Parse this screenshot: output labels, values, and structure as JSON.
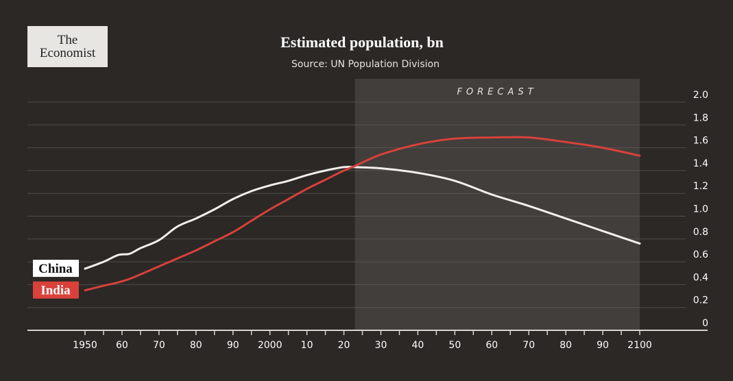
{
  "logo": {
    "line1": "The",
    "line2": "Economist"
  },
  "chart_data": {
    "type": "line",
    "title": "Estimated population, bn",
    "subtitle": "Source: UN Population Division",
    "annotation": "FORECAST",
    "forecast_start": 2023,
    "xlim": [
      1950,
      2100
    ],
    "ylim": [
      0,
      2.0
    ],
    "grid": true,
    "y_axis_side": "right",
    "x_ticks": [
      1950,
      1960,
      1970,
      1980,
      1990,
      2000,
      2010,
      2020,
      2030,
      2040,
      2050,
      2060,
      2070,
      2080,
      2090,
      2100
    ],
    "x_tick_labels": [
      "1950",
      "60",
      "70",
      "80",
      "90",
      "2000",
      "10",
      "20",
      "30",
      "40",
      "50",
      "60",
      "70",
      "80",
      "90",
      "2100"
    ],
    "y_ticks": [
      0,
      0.2,
      0.4,
      0.6,
      0.8,
      1.0,
      1.2,
      1.4,
      1.6,
      1.8,
      2.0
    ],
    "y_tick_labels": [
      "0",
      "0.2",
      "0.4",
      "0.6",
      "0.8",
      "1.0",
      "1.2",
      "1.4",
      "1.6",
      "1.8",
      "2.0"
    ],
    "x": [
      1950,
      1955,
      1959,
      1962,
      1965,
      1970,
      1975,
      1980,
      1985,
      1990,
      1995,
      2000,
      2005,
      2010,
      2015,
      2020,
      2023,
      2030,
      2040,
      2050,
      2060,
      2070,
      2080,
      2090,
      2100
    ],
    "series": [
      {
        "name": "China",
        "color": "#f2f0ec",
        "label_bg": "#ffffff",
        "label_color": "#111111",
        "values": [
          0.54,
          0.6,
          0.66,
          0.67,
          0.72,
          0.79,
          0.91,
          0.98,
          1.06,
          1.15,
          1.22,
          1.27,
          1.31,
          1.36,
          1.4,
          1.43,
          1.43,
          1.42,
          1.38,
          1.31,
          1.19,
          1.09,
          0.98,
          0.87,
          0.76
        ]
      },
      {
        "name": "India",
        "color": "#d9413a",
        "label_bg": "#d9413a",
        "label_color": "#ffffff",
        "values": [
          0.35,
          0.39,
          0.42,
          0.45,
          0.49,
          0.56,
          0.63,
          0.7,
          0.78,
          0.86,
          0.96,
          1.06,
          1.15,
          1.24,
          1.32,
          1.4,
          1.44,
          1.54,
          1.63,
          1.68,
          1.69,
          1.69,
          1.65,
          1.6,
          1.53
        ]
      }
    ]
  }
}
